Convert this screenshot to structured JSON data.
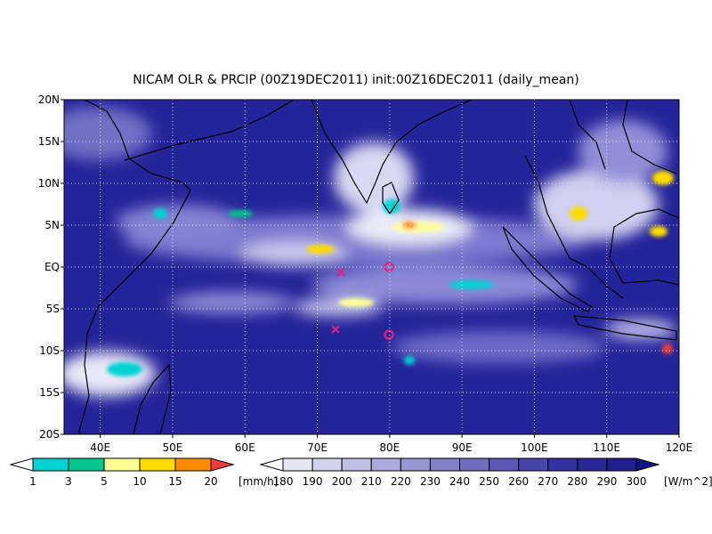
{
  "title": "NICAM OLR & PRCIP (00Z19DEC2011) init:00Z16DEC2011 (daily_mean)",
  "map": {
    "lon_range": [
      35,
      120
    ],
    "lat_range": [
      -20,
      20
    ],
    "lon_ticks": [
      {
        "value": 40,
        "label": "40E"
      },
      {
        "value": 50,
        "label": "50E"
      },
      {
        "value": 60,
        "label": "60E"
      },
      {
        "value": 70,
        "label": "70E"
      },
      {
        "value": 80,
        "label": "80E"
      },
      {
        "value": 90,
        "label": "90E"
      },
      {
        "value": 100,
        "label": "100E"
      },
      {
        "value": 110,
        "label": "110E"
      },
      {
        "value": 120,
        "label": "120E"
      }
    ],
    "lat_ticks": [
      {
        "value": 20,
        "label": "20N"
      },
      {
        "value": 15,
        "label": "15N"
      },
      {
        "value": 10,
        "label": "10N"
      },
      {
        "value": 5,
        "label": "5N"
      },
      {
        "value": 0,
        "label": "EQ"
      },
      {
        "value": -5,
        "label": "5S"
      },
      {
        "value": -10,
        "label": "10S"
      },
      {
        "value": -15,
        "label": "15S"
      },
      {
        "value": -20,
        "label": "20S"
      }
    ]
  },
  "precip_colorbar": {
    "labels": [
      "1",
      "3",
      "5",
      "10",
      "15",
      "20"
    ],
    "unit": "[mm/h]",
    "colors": [
      "#ffffff",
      "#00d2d2",
      "#00c88c",
      "#ffff96",
      "#ffdc00",
      "#ff8c00",
      "#f03c3c"
    ]
  },
  "olr_colorbar": {
    "labels": [
      "180",
      "190",
      "200",
      "210",
      "220",
      "230",
      "240",
      "250",
      "260",
      "270",
      "280",
      "290",
      "300"
    ],
    "unit": "[W/m^2]",
    "colors": [
      "#ffffff",
      "#e6e6f5",
      "#d2d2ee",
      "#bebee6",
      "#aaaadc",
      "#9696d2",
      "#8282c8",
      "#6e6ebe",
      "#5a5ab4",
      "#4646aa",
      "#3232a0",
      "#282896",
      "#1e1e8c",
      "#141482"
    ]
  }
}
